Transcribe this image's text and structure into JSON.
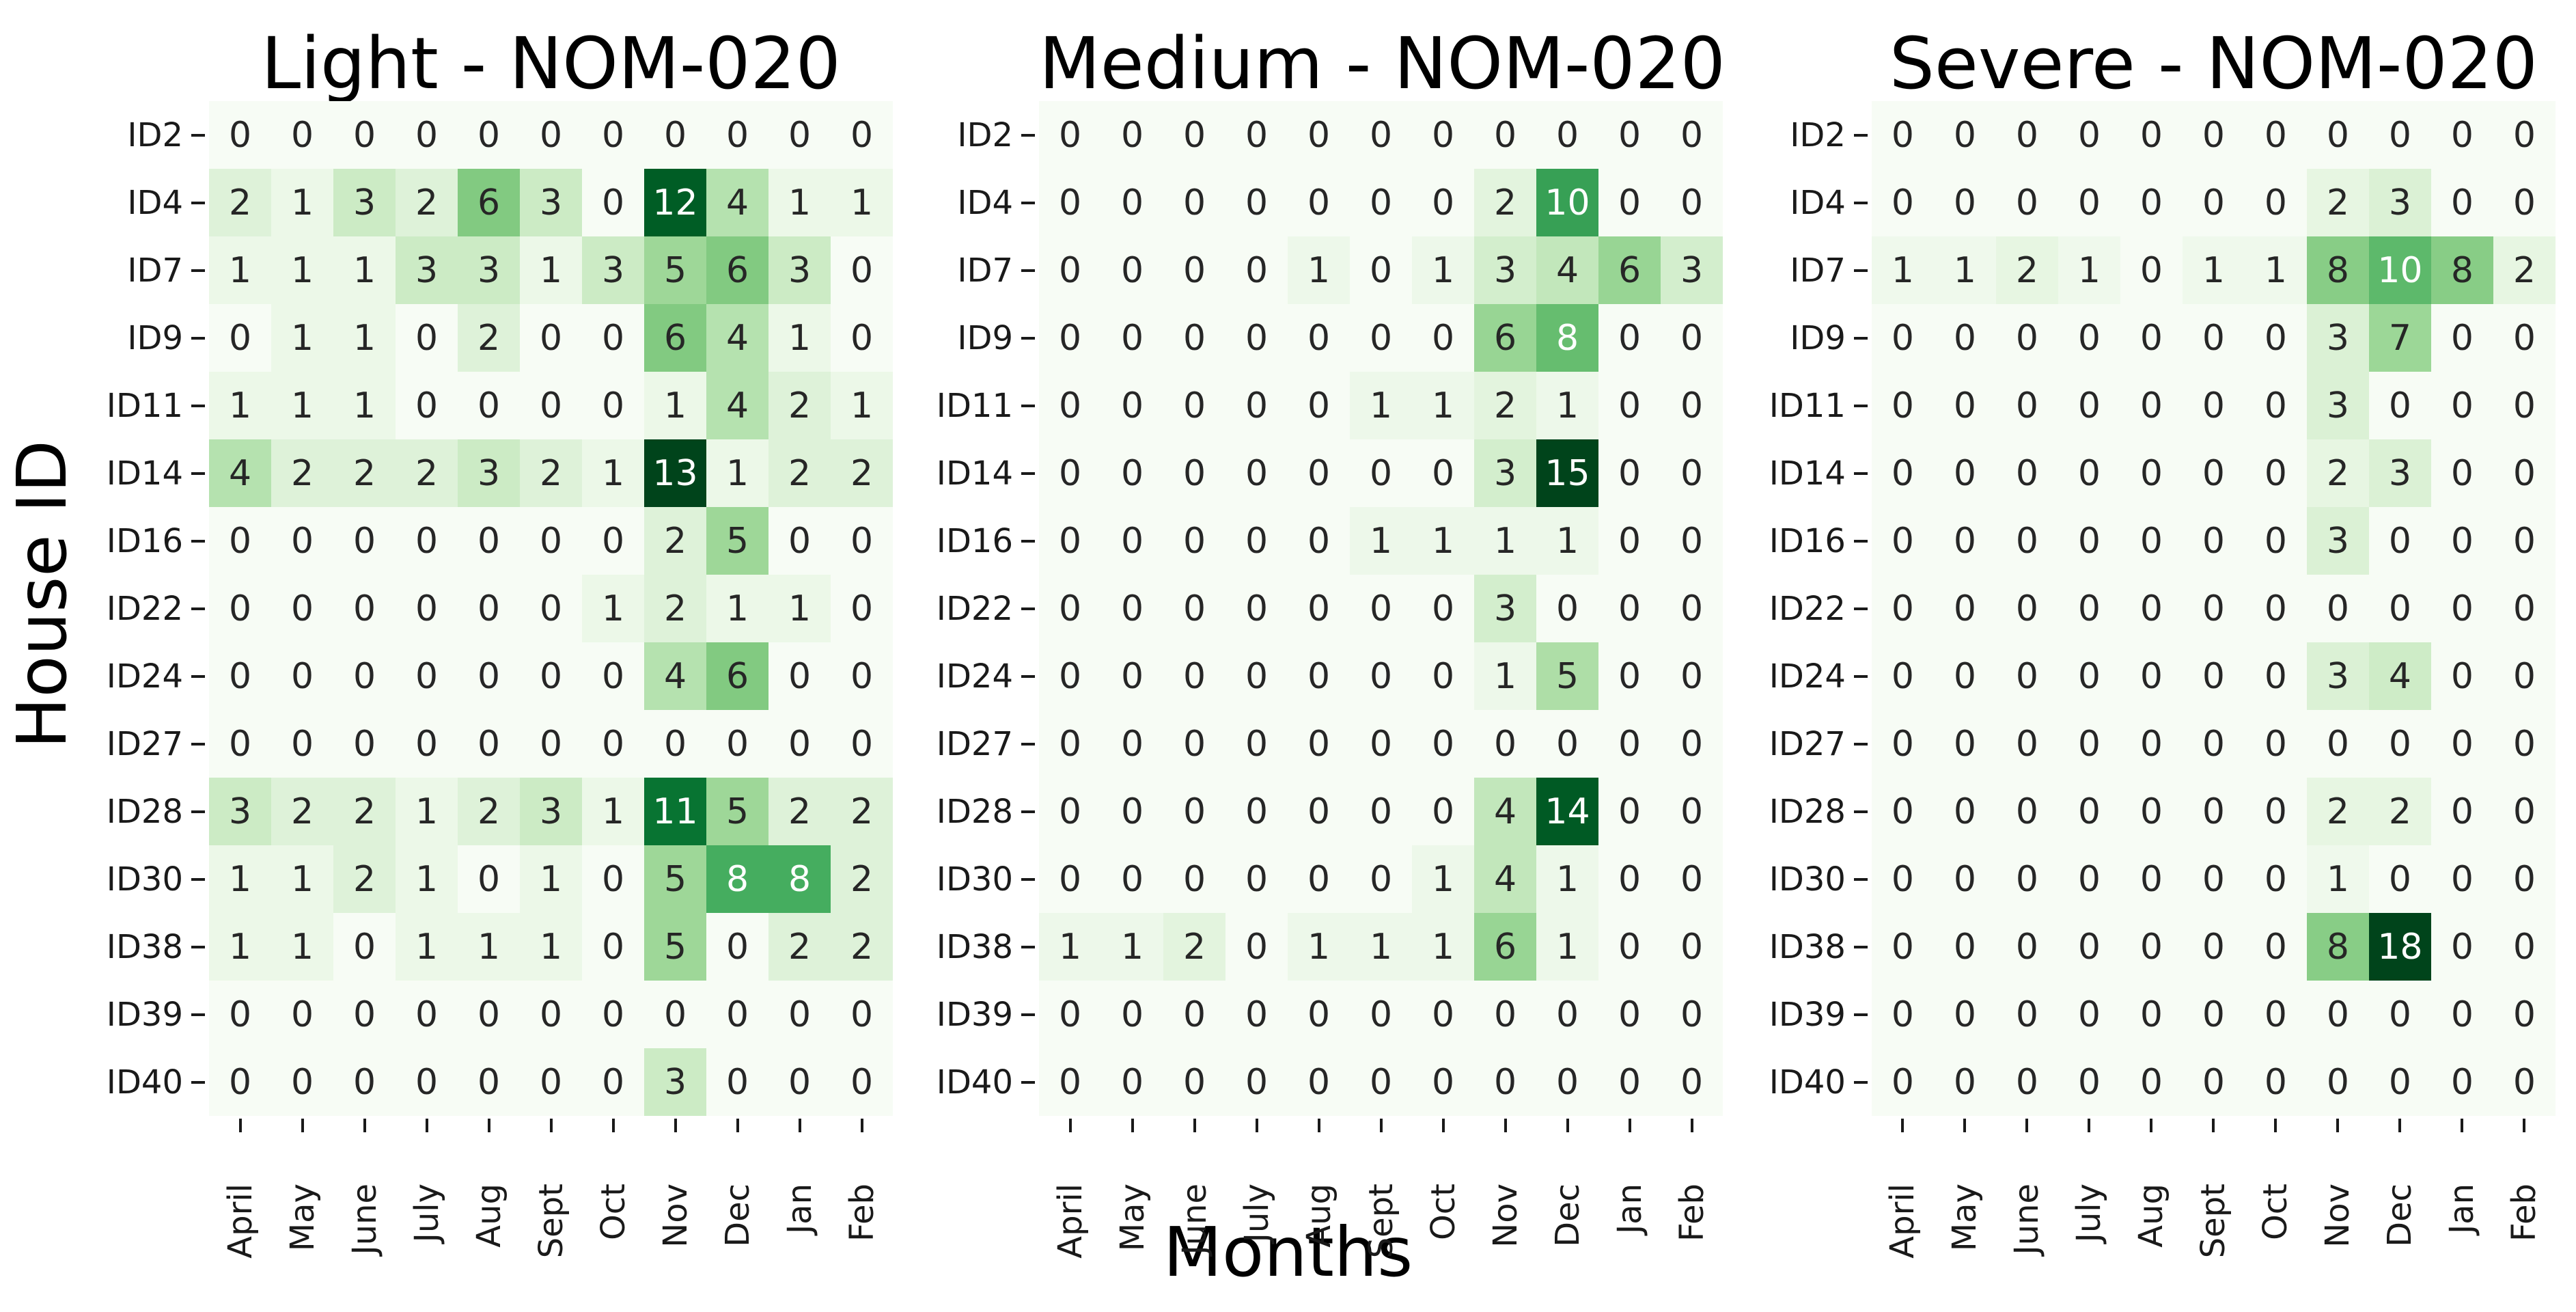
{
  "figure": {
    "y_axis_label": "House ID",
    "x_axis_label": "Months"
  },
  "colors": {
    "background": "#ffffff",
    "annot_dark": "#262626",
    "annot_light": "#ffffff",
    "tick": "#1a1a1a",
    "greens_colormap_stops": [
      "#f7fcf5",
      "#e5f5e0",
      "#c7e9c0",
      "#a1d99b",
      "#74c476",
      "#41ab5d",
      "#238b45",
      "#006d2c",
      "#00441b"
    ]
  },
  "chart_data": [
    {
      "type": "heatmap",
      "title": "Light - NOM-020",
      "rows": [
        "ID2",
        "ID4",
        "ID7",
        "ID9",
        "ID11",
        "ID14",
        "ID16",
        "ID22",
        "ID24",
        "ID27",
        "ID28",
        "ID30",
        "ID38",
        "ID39",
        "ID40"
      ],
      "columns": [
        "April",
        "May",
        "June",
        "July",
        "Aug",
        "Sept",
        "Oct",
        "Nov",
        "Dec",
        "Jan",
        "Feb"
      ],
      "values": [
        [
          0,
          0,
          0,
          0,
          0,
          0,
          0,
          0,
          0,
          0,
          0
        ],
        [
          2,
          1,
          3,
          2,
          6,
          3,
          0,
          12,
          4,
          1,
          1
        ],
        [
          1,
          1,
          1,
          3,
          3,
          1,
          3,
          5,
          6,
          3,
          0
        ],
        [
          0,
          1,
          1,
          0,
          2,
          0,
          0,
          6,
          4,
          1,
          0
        ],
        [
          1,
          1,
          1,
          0,
          0,
          0,
          0,
          1,
          4,
          2,
          1
        ],
        [
          4,
          2,
          2,
          2,
          3,
          2,
          1,
          13,
          1,
          2,
          2
        ],
        [
          0,
          0,
          0,
          0,
          0,
          0,
          0,
          2,
          5,
          0,
          0
        ],
        [
          0,
          0,
          0,
          0,
          0,
          0,
          1,
          2,
          1,
          1,
          0
        ],
        [
          0,
          0,
          0,
          0,
          0,
          0,
          0,
          4,
          6,
          0,
          0
        ],
        [
          0,
          0,
          0,
          0,
          0,
          0,
          0,
          0,
          0,
          0,
          0
        ],
        [
          3,
          2,
          2,
          1,
          2,
          3,
          1,
          11,
          5,
          2,
          2
        ],
        [
          1,
          1,
          2,
          1,
          0,
          1,
          0,
          5,
          8,
          8,
          2
        ],
        [
          1,
          1,
          0,
          1,
          1,
          1,
          0,
          5,
          0,
          2,
          2
        ],
        [
          0,
          0,
          0,
          0,
          0,
          0,
          0,
          0,
          0,
          0,
          0
        ],
        [
          0,
          0,
          0,
          0,
          0,
          0,
          0,
          3,
          0,
          0,
          0
        ]
      ],
      "vmin": 0,
      "vmax": 13,
      "colormap": "Greens",
      "legend": "none",
      "grid": false
    },
    {
      "type": "heatmap",
      "title": "Medium - NOM-020",
      "rows": [
        "ID2",
        "ID4",
        "ID7",
        "ID9",
        "ID11",
        "ID14",
        "ID16",
        "ID22",
        "ID24",
        "ID27",
        "ID28",
        "ID30",
        "ID38",
        "ID39",
        "ID40"
      ],
      "columns": [
        "April",
        "May",
        "June",
        "July",
        "Aug",
        "Sept",
        "Oct",
        "Nov",
        "Dec",
        "Jan",
        "Feb"
      ],
      "values": [
        [
          0,
          0,
          0,
          0,
          0,
          0,
          0,
          0,
          0,
          0,
          0
        ],
        [
          0,
          0,
          0,
          0,
          0,
          0,
          0,
          2,
          10,
          0,
          0
        ],
        [
          0,
          0,
          0,
          0,
          1,
          0,
          1,
          3,
          4,
          6,
          3
        ],
        [
          0,
          0,
          0,
          0,
          0,
          0,
          0,
          6,
          8,
          0,
          0
        ],
        [
          0,
          0,
          0,
          0,
          0,
          1,
          1,
          2,
          1,
          0,
          0
        ],
        [
          0,
          0,
          0,
          0,
          0,
          0,
          0,
          3,
          15,
          0,
          0
        ],
        [
          0,
          0,
          0,
          0,
          0,
          1,
          1,
          1,
          1,
          0,
          0
        ],
        [
          0,
          0,
          0,
          0,
          0,
          0,
          0,
          3,
          0,
          0,
          0
        ],
        [
          0,
          0,
          0,
          0,
          0,
          0,
          0,
          1,
          5,
          0,
          0
        ],
        [
          0,
          0,
          0,
          0,
          0,
          0,
          0,
          0,
          0,
          0,
          0
        ],
        [
          0,
          0,
          0,
          0,
          0,
          0,
          0,
          4,
          14,
          0,
          0
        ],
        [
          0,
          0,
          0,
          0,
          0,
          0,
          1,
          4,
          1,
          0,
          0
        ],
        [
          1,
          1,
          2,
          0,
          1,
          1,
          1,
          6,
          1,
          0,
          0
        ],
        [
          0,
          0,
          0,
          0,
          0,
          0,
          0,
          0,
          0,
          0,
          0
        ],
        [
          0,
          0,
          0,
          0,
          0,
          0,
          0,
          0,
          0,
          0,
          0
        ]
      ],
      "vmin": 0,
      "vmax": 15,
      "colormap": "Greens",
      "legend": "none",
      "grid": false
    },
    {
      "type": "heatmap",
      "title": "Severe - NOM-020",
      "rows": [
        "ID2",
        "ID4",
        "ID7",
        "ID9",
        "ID11",
        "ID14",
        "ID16",
        "ID22",
        "ID24",
        "ID27",
        "ID28",
        "ID30",
        "ID38",
        "ID39",
        "ID40"
      ],
      "columns": [
        "April",
        "May",
        "June",
        "July",
        "Aug",
        "Sept",
        "Oct",
        "Nov",
        "Dec",
        "Jan",
        "Feb"
      ],
      "values": [
        [
          0,
          0,
          0,
          0,
          0,
          0,
          0,
          0,
          0,
          0,
          0
        ],
        [
          0,
          0,
          0,
          0,
          0,
          0,
          0,
          2,
          3,
          0,
          0
        ],
        [
          1,
          1,
          2,
          1,
          0,
          1,
          1,
          8,
          10,
          8,
          2
        ],
        [
          0,
          0,
          0,
          0,
          0,
          0,
          0,
          3,
          7,
          0,
          0
        ],
        [
          0,
          0,
          0,
          0,
          0,
          0,
          0,
          3,
          0,
          0,
          0
        ],
        [
          0,
          0,
          0,
          0,
          0,
          0,
          0,
          2,
          3,
          0,
          0
        ],
        [
          0,
          0,
          0,
          0,
          0,
          0,
          0,
          3,
          0,
          0,
          0
        ],
        [
          0,
          0,
          0,
          0,
          0,
          0,
          0,
          0,
          0,
          0,
          0
        ],
        [
          0,
          0,
          0,
          0,
          0,
          0,
          0,
          3,
          4,
          0,
          0
        ],
        [
          0,
          0,
          0,
          0,
          0,
          0,
          0,
          0,
          0,
          0,
          0
        ],
        [
          0,
          0,
          0,
          0,
          0,
          0,
          0,
          2,
          2,
          0,
          0
        ],
        [
          0,
          0,
          0,
          0,
          0,
          0,
          0,
          1,
          0,
          0,
          0
        ],
        [
          0,
          0,
          0,
          0,
          0,
          0,
          0,
          8,
          18,
          0,
          0
        ],
        [
          0,
          0,
          0,
          0,
          0,
          0,
          0,
          0,
          0,
          0,
          0
        ],
        [
          0,
          0,
          0,
          0,
          0,
          0,
          0,
          0,
          0,
          0,
          0
        ]
      ],
      "vmin": 0,
      "vmax": 18,
      "colormap": "Greens",
      "legend": "none",
      "grid": false
    }
  ]
}
